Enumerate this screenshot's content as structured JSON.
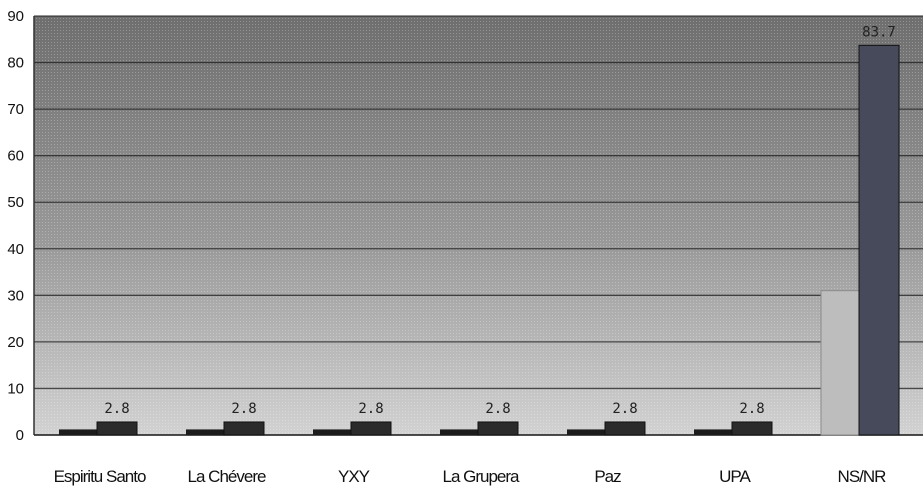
{
  "chart_data": {
    "type": "bar",
    "categories": [
      "Espiritu Santo",
      "La Chévere",
      "YXY",
      "La Grupera",
      "Paz",
      "UPA",
      "NS/NR"
    ],
    "series": [
      {
        "values": [
          1.2,
          1.2,
          1.2,
          1.2,
          1.2,
          1.2,
          31
        ]
      },
      {
        "values": [
          2.8,
          2.8,
          2.8,
          2.8,
          2.8,
          2.8,
          83.7
        ]
      }
    ],
    "data_labels": [
      "2.8",
      "2.8",
      "2.8",
      "2.8",
      "2.8",
      "2.8",
      "83.7"
    ],
    "yticks": [
      "0",
      "10",
      "20",
      "30",
      "40",
      "50",
      "60",
      "70",
      "80",
      "90"
    ],
    "ylim": [
      0,
      90
    ],
    "grid": true,
    "colors": {
      "plot_background_top": "#6e6e6e",
      "plot_background_bottom": "#d2d2d2",
      "series_1": "#1c1c1c",
      "series_1_last": "#bdbdbd",
      "series_2": "#2b2b2b",
      "series_2_last": "#474a5a",
      "gridline": "#1e1e1e"
    }
  }
}
